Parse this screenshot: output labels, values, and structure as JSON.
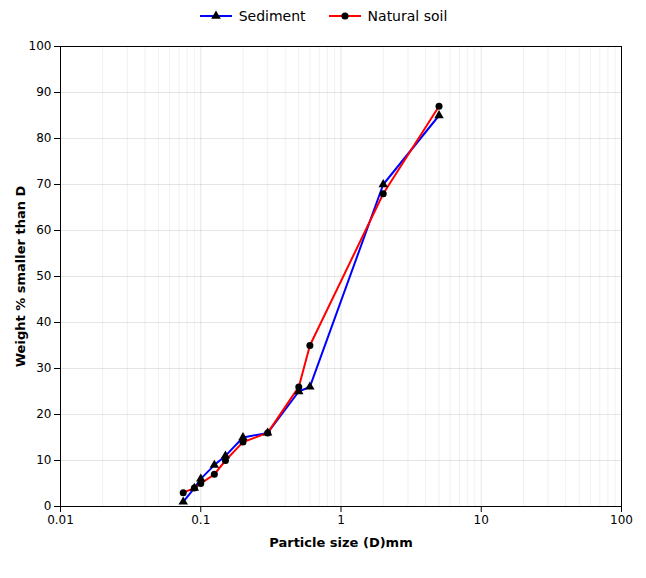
{
  "chart_data": {
    "type": "line",
    "xlabel": "Particle size (D)mm",
    "ylabel": "Weight % smaller than D",
    "log": "x",
    "x": [
      0.075,
      0.09,
      0.1,
      0.125,
      0.15,
      0.2,
      0.3,
      0.5,
      0.6,
      2.0,
      5.0
    ],
    "series": [
      {
        "name": "Sediment",
        "color": "#0000ff",
        "marker": "triangle",
        "line_style": "solid",
        "values": [
          1,
          4,
          6,
          9,
          11,
          15,
          16,
          25,
          26,
          70,
          85
        ]
      },
      {
        "name": "Natural soil",
        "color": "#ff0000",
        "marker": "circle",
        "line_style": "solid",
        "values": [
          3,
          4,
          5,
          7,
          10,
          14,
          16,
          26,
          35,
          68,
          87
        ]
      }
    ],
    "xlim": [
      0.01,
      100
    ],
    "xticks": [
      0.01,
      0.1,
      1,
      10,
      100
    ],
    "ylim": [
      0,
      100
    ],
    "yticks": [
      0,
      10,
      20,
      30,
      40,
      50,
      60,
      70,
      80,
      90,
      100
    ],
    "grid": true,
    "legend": "top"
  }
}
